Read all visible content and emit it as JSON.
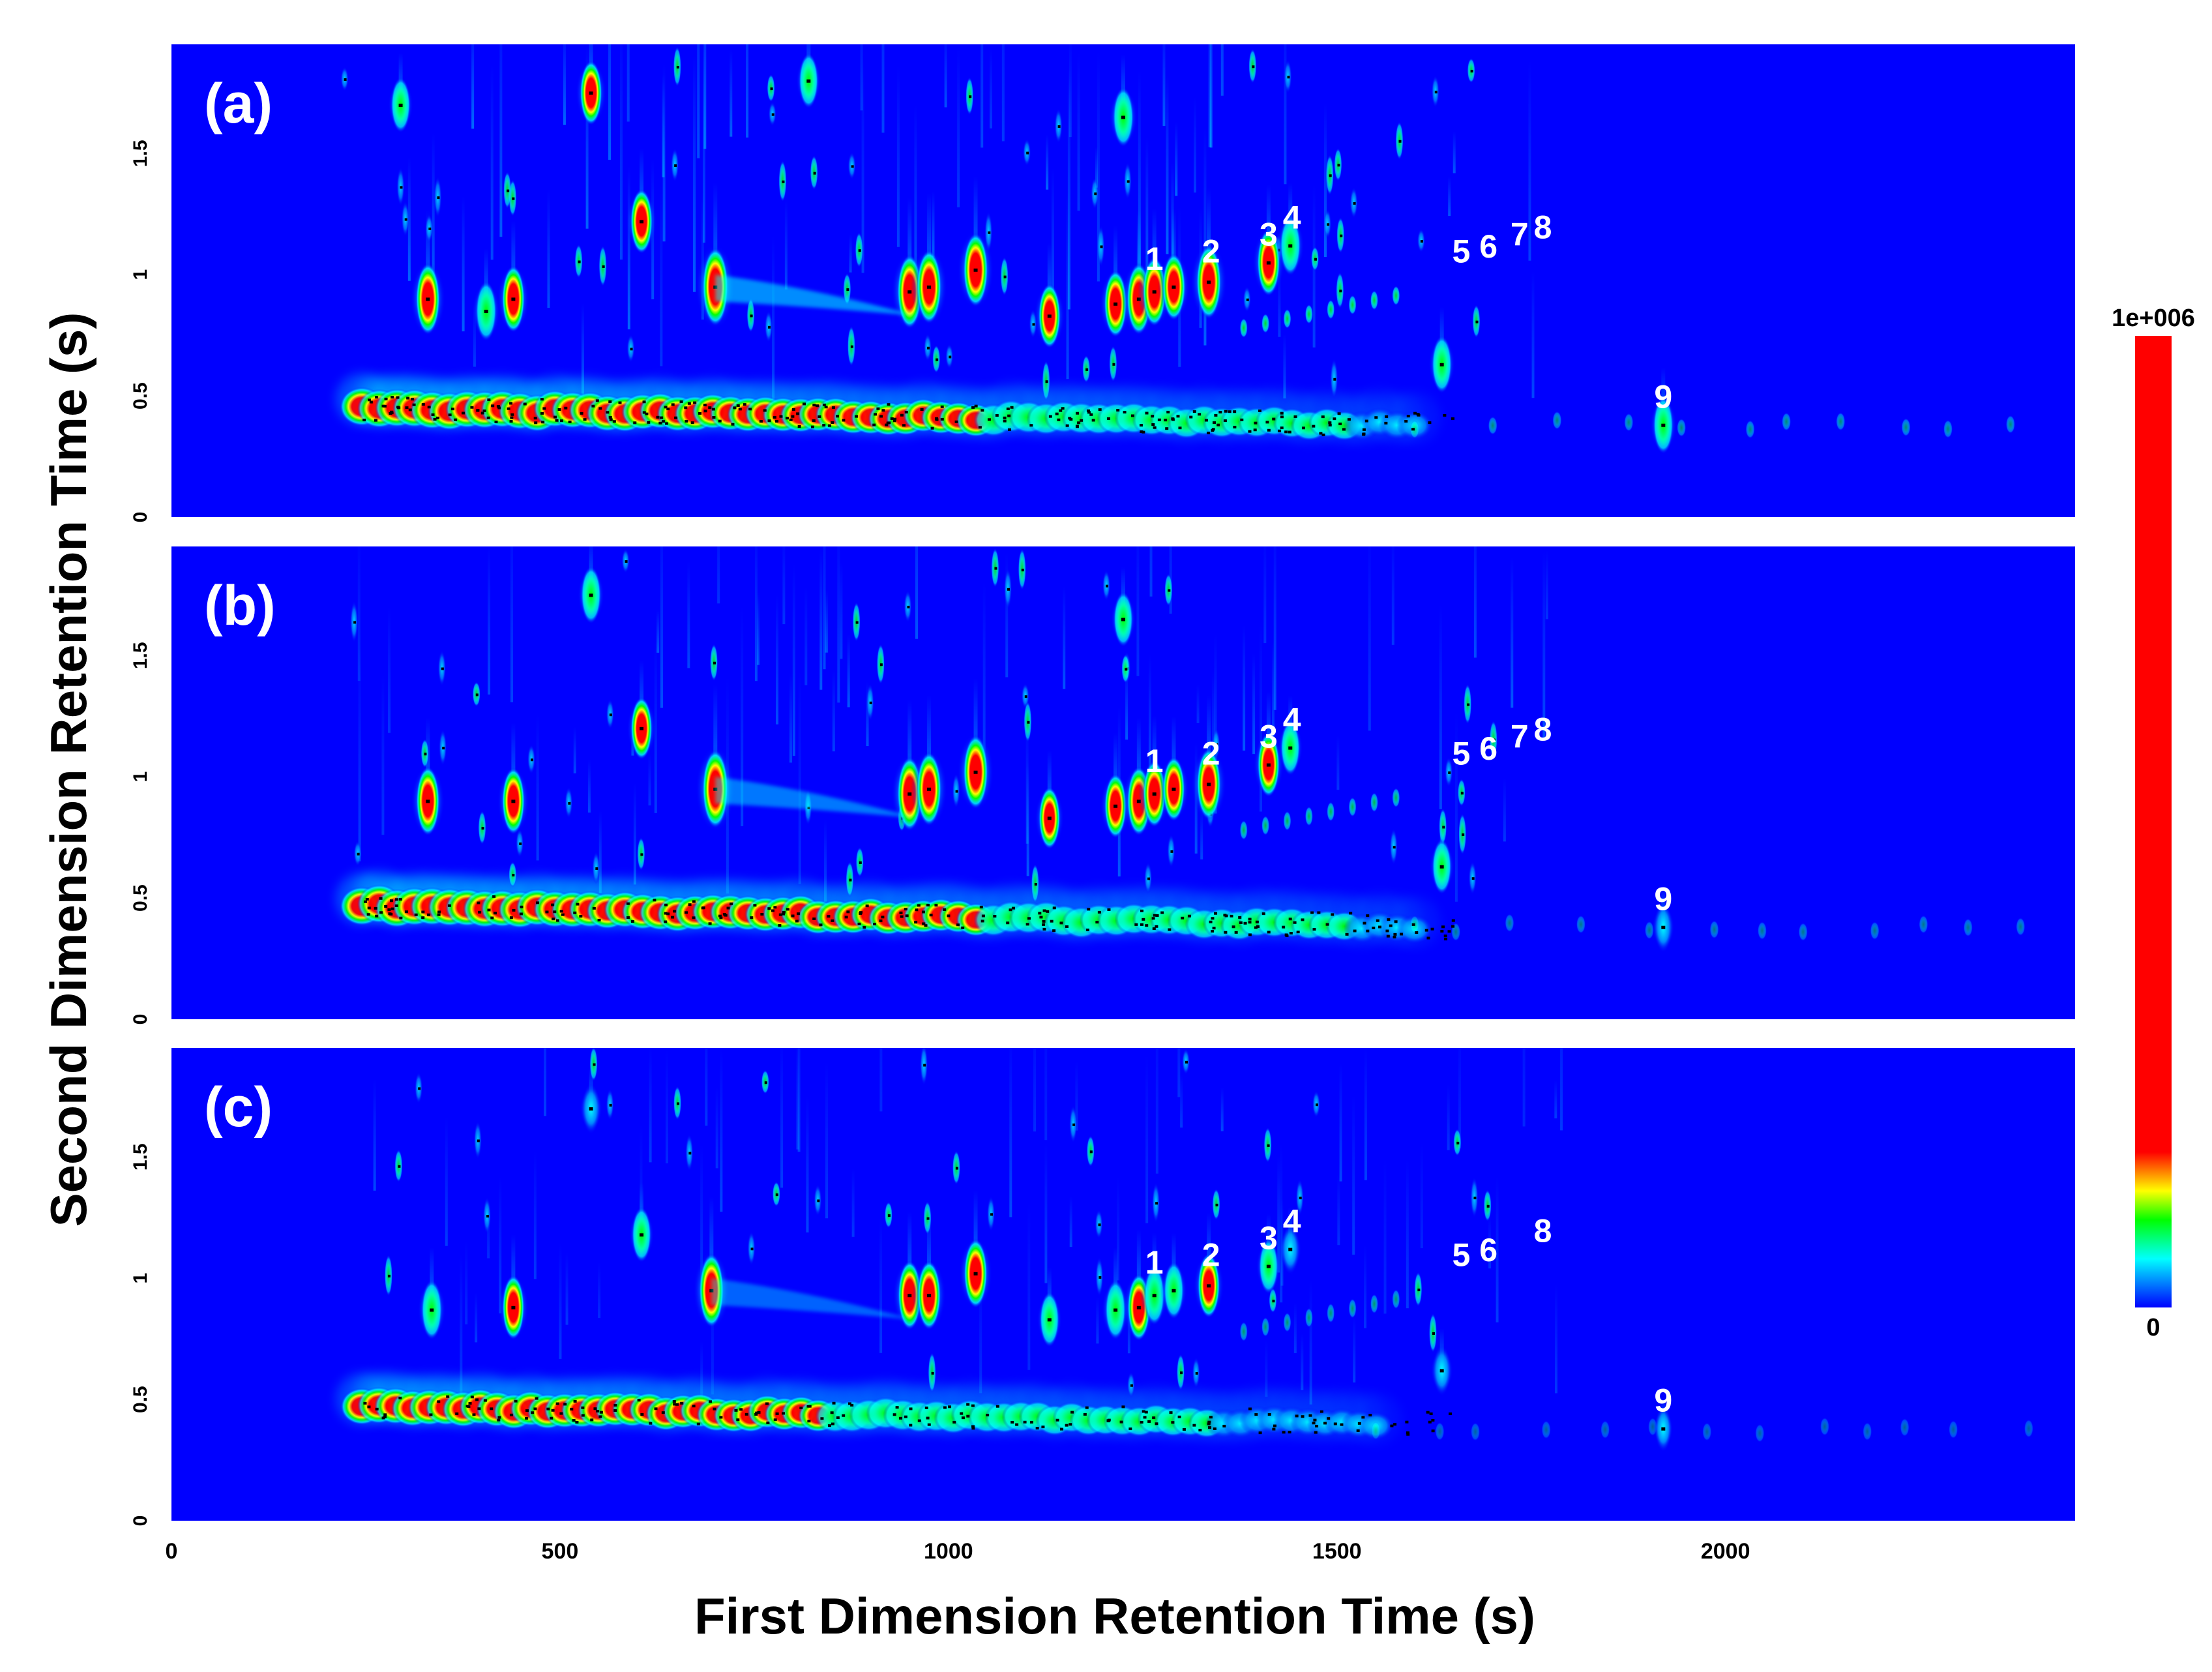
{
  "chart_data": {
    "type": "heatmap",
    "xlabel": "First Dimension Retention Time (s)",
    "ylabel": "Second Dimension Retention Time (s)",
    "xlim": [
      0,
      2450
    ],
    "ylim": [
      0,
      1.95
    ],
    "x_ticks": [
      {
        "value": 0,
        "label": "0"
      },
      {
        "value": 500,
        "label": "500"
      },
      {
        "value": 1000,
        "label": "1000"
      },
      {
        "value": 1500,
        "label": "1500"
      },
      {
        "value": 2000,
        "label": "2000"
      }
    ],
    "y_ticks": [
      {
        "value": 0,
        "label": "0"
      },
      {
        "value": 0.5,
        "label": "0.5"
      },
      {
        "value": 1,
        "label": "1"
      },
      {
        "value": 1.5,
        "label": "1.5"
      }
    ],
    "colorbar": {
      "max_label": "1e+006",
      "min_label": "0",
      "colors": [
        "#0000ff",
        "#00ffff",
        "#00ff00",
        "#ffff00",
        "#ff0000"
      ]
    },
    "background_color": "#0000ff",
    "panels": [
      {
        "label": "(a)",
        "peaks": [
          {
            "id": "1",
            "x": 1265,
            "y": 0.95
          },
          {
            "id": "2",
            "x": 1338,
            "y": 0.98
          },
          {
            "id": "3",
            "x": 1412,
            "y": 1.05
          },
          {
            "id": "4",
            "x": 1442,
            "y": 1.12
          },
          {
            "id": "5",
            "x": 1660,
            "y": 0.98
          },
          {
            "id": "6",
            "x": 1695,
            "y": 1.0
          },
          {
            "id": "7",
            "x": 1735,
            "y": 1.05
          },
          {
            "id": "8",
            "x": 1765,
            "y": 1.08
          },
          {
            "id": "9",
            "x": 1920,
            "y": 0.38
          }
        ],
        "intensity_scale": 1.0,
        "intense_peaks": [
          {
            "x": 700,
            "y": 0.95,
            "i": 1.0
          },
          {
            "x": 950,
            "y": 0.93,
            "i": 0.9
          },
          {
            "x": 975,
            "y": 0.95,
            "i": 0.9
          },
          {
            "x": 1035,
            "y": 1.02,
            "i": 0.9
          },
          {
            "x": 330,
            "y": 0.9,
            "i": 0.85
          },
          {
            "x": 440,
            "y": 0.9,
            "i": 0.75
          },
          {
            "x": 405,
            "y": 0.85,
            "i": 0.6
          },
          {
            "x": 540,
            "y": 1.75,
            "i": 0.7
          },
          {
            "x": 605,
            "y": 1.22,
            "i": 0.7
          },
          {
            "x": 1130,
            "y": 0.83,
            "i": 0.7
          },
          {
            "x": 1215,
            "y": 0.88,
            "i": 0.75
          },
          {
            "x": 1245,
            "y": 0.9,
            "i": 0.85
          },
          {
            "x": 1265,
            "y": 0.93,
            "i": 0.8
          },
          {
            "x": 1290,
            "y": 0.95,
            "i": 0.75
          },
          {
            "x": 1335,
            "y": 0.97,
            "i": 0.9
          },
          {
            "x": 1412,
            "y": 1.05,
            "i": 0.75
          },
          {
            "x": 1440,
            "y": 1.12,
            "i": 0.6
          },
          {
            "x": 1225,
            "y": 1.65,
            "i": 0.6
          },
          {
            "x": 295,
            "y": 1.7,
            "i": 0.5
          },
          {
            "x": 820,
            "y": 1.8,
            "i": 0.5
          },
          {
            "x": 1635,
            "y": 0.63,
            "i": 0.55
          },
          {
            "x": 1920,
            "y": 0.38,
            "i": 0.55
          }
        ],
        "baseline": {
          "x_start": 245,
          "x_end": 1600,
          "y_start": 0.45,
          "y_end": 0.38,
          "i_start": 1.0,
          "i_end": 0.25
        }
      },
      {
        "label": "(b)",
        "peaks": [
          {
            "id": "1",
            "x": 1265,
            "y": 0.95
          },
          {
            "id": "2",
            "x": 1338,
            "y": 0.98
          },
          {
            "id": "3",
            "x": 1412,
            "y": 1.05
          },
          {
            "id": "4",
            "x": 1442,
            "y": 1.12
          },
          {
            "id": "5",
            "x": 1660,
            "y": 0.98
          },
          {
            "id": "6",
            "x": 1695,
            "y": 1.0
          },
          {
            "id": "7",
            "x": 1735,
            "y": 1.05
          },
          {
            "id": "8",
            "x": 1765,
            "y": 1.08
          },
          {
            "id": "9",
            "x": 1920,
            "y": 0.38
          }
        ],
        "intensity_scale": 0.85,
        "intense_peaks": [
          {
            "x": 700,
            "y": 0.95,
            "i": 1.0
          },
          {
            "x": 950,
            "y": 0.93,
            "i": 0.9
          },
          {
            "x": 975,
            "y": 0.95,
            "i": 0.9
          },
          {
            "x": 1035,
            "y": 1.02,
            "i": 0.9
          },
          {
            "x": 330,
            "y": 0.9,
            "i": 0.8
          },
          {
            "x": 440,
            "y": 0.9,
            "i": 0.75
          },
          {
            "x": 540,
            "y": 1.75,
            "i": 0.55
          },
          {
            "x": 605,
            "y": 1.2,
            "i": 0.65
          },
          {
            "x": 1130,
            "y": 0.83,
            "i": 0.65
          },
          {
            "x": 1215,
            "y": 0.88,
            "i": 0.7
          },
          {
            "x": 1245,
            "y": 0.9,
            "i": 0.8
          },
          {
            "x": 1265,
            "y": 0.93,
            "i": 0.75
          },
          {
            "x": 1290,
            "y": 0.95,
            "i": 0.7
          },
          {
            "x": 1335,
            "y": 0.97,
            "i": 0.85
          },
          {
            "x": 1412,
            "y": 1.05,
            "i": 0.7
          },
          {
            "x": 1440,
            "y": 1.12,
            "i": 0.5
          },
          {
            "x": 1225,
            "y": 1.65,
            "i": 0.5
          },
          {
            "x": 1635,
            "y": 0.63,
            "i": 0.5
          },
          {
            "x": 1920,
            "y": 0.38,
            "i": 0.4
          }
        ],
        "baseline": {
          "x_start": 245,
          "x_end": 1600,
          "y_start": 0.47,
          "y_end": 0.38,
          "i_start": 1.0,
          "i_end": 0.25
        }
      },
      {
        "label": "(c)",
        "peaks": [
          {
            "id": "1",
            "x": 1265,
            "y": 0.95
          },
          {
            "id": "2",
            "x": 1338,
            "y": 0.98
          },
          {
            "id": "3",
            "x": 1412,
            "y": 1.05
          },
          {
            "id": "4",
            "x": 1442,
            "y": 1.12
          },
          {
            "id": "5",
            "x": 1660,
            "y": 0.98
          },
          {
            "id": "6",
            "x": 1695,
            "y": 1.0
          },
          {
            "id": "8",
            "x": 1765,
            "y": 1.08
          },
          {
            "id": "9",
            "x": 1920,
            "y": 0.38
          }
        ],
        "intensity_scale": 0.7,
        "intense_peaks": [
          {
            "x": 695,
            "y": 0.95,
            "i": 0.9
          },
          {
            "x": 950,
            "y": 0.93,
            "i": 0.8
          },
          {
            "x": 975,
            "y": 0.93,
            "i": 0.8
          },
          {
            "x": 1035,
            "y": 1.02,
            "i": 0.8
          },
          {
            "x": 335,
            "y": 0.87,
            "i": 0.6
          },
          {
            "x": 440,
            "y": 0.88,
            "i": 0.7
          },
          {
            "x": 540,
            "y": 1.7,
            "i": 0.4
          },
          {
            "x": 605,
            "y": 1.18,
            "i": 0.5
          },
          {
            "x": 1130,
            "y": 0.83,
            "i": 0.5
          },
          {
            "x": 1215,
            "y": 0.87,
            "i": 0.6
          },
          {
            "x": 1245,
            "y": 0.88,
            "i": 0.75
          },
          {
            "x": 1265,
            "y": 0.93,
            "i": 0.6
          },
          {
            "x": 1290,
            "y": 0.95,
            "i": 0.55
          },
          {
            "x": 1335,
            "y": 0.97,
            "i": 0.7
          },
          {
            "x": 1412,
            "y": 1.05,
            "i": 0.5
          },
          {
            "x": 1440,
            "y": 1.12,
            "i": 0.4
          },
          {
            "x": 1635,
            "y": 0.62,
            "i": 0.4
          },
          {
            "x": 1920,
            "y": 0.38,
            "i": 0.3
          }
        ],
        "baseline": {
          "x_start": 245,
          "x_end": 1550,
          "y_start": 0.47,
          "y_end": 0.4,
          "i_start": 0.85,
          "i_end": 0.2
        }
      }
    ]
  }
}
